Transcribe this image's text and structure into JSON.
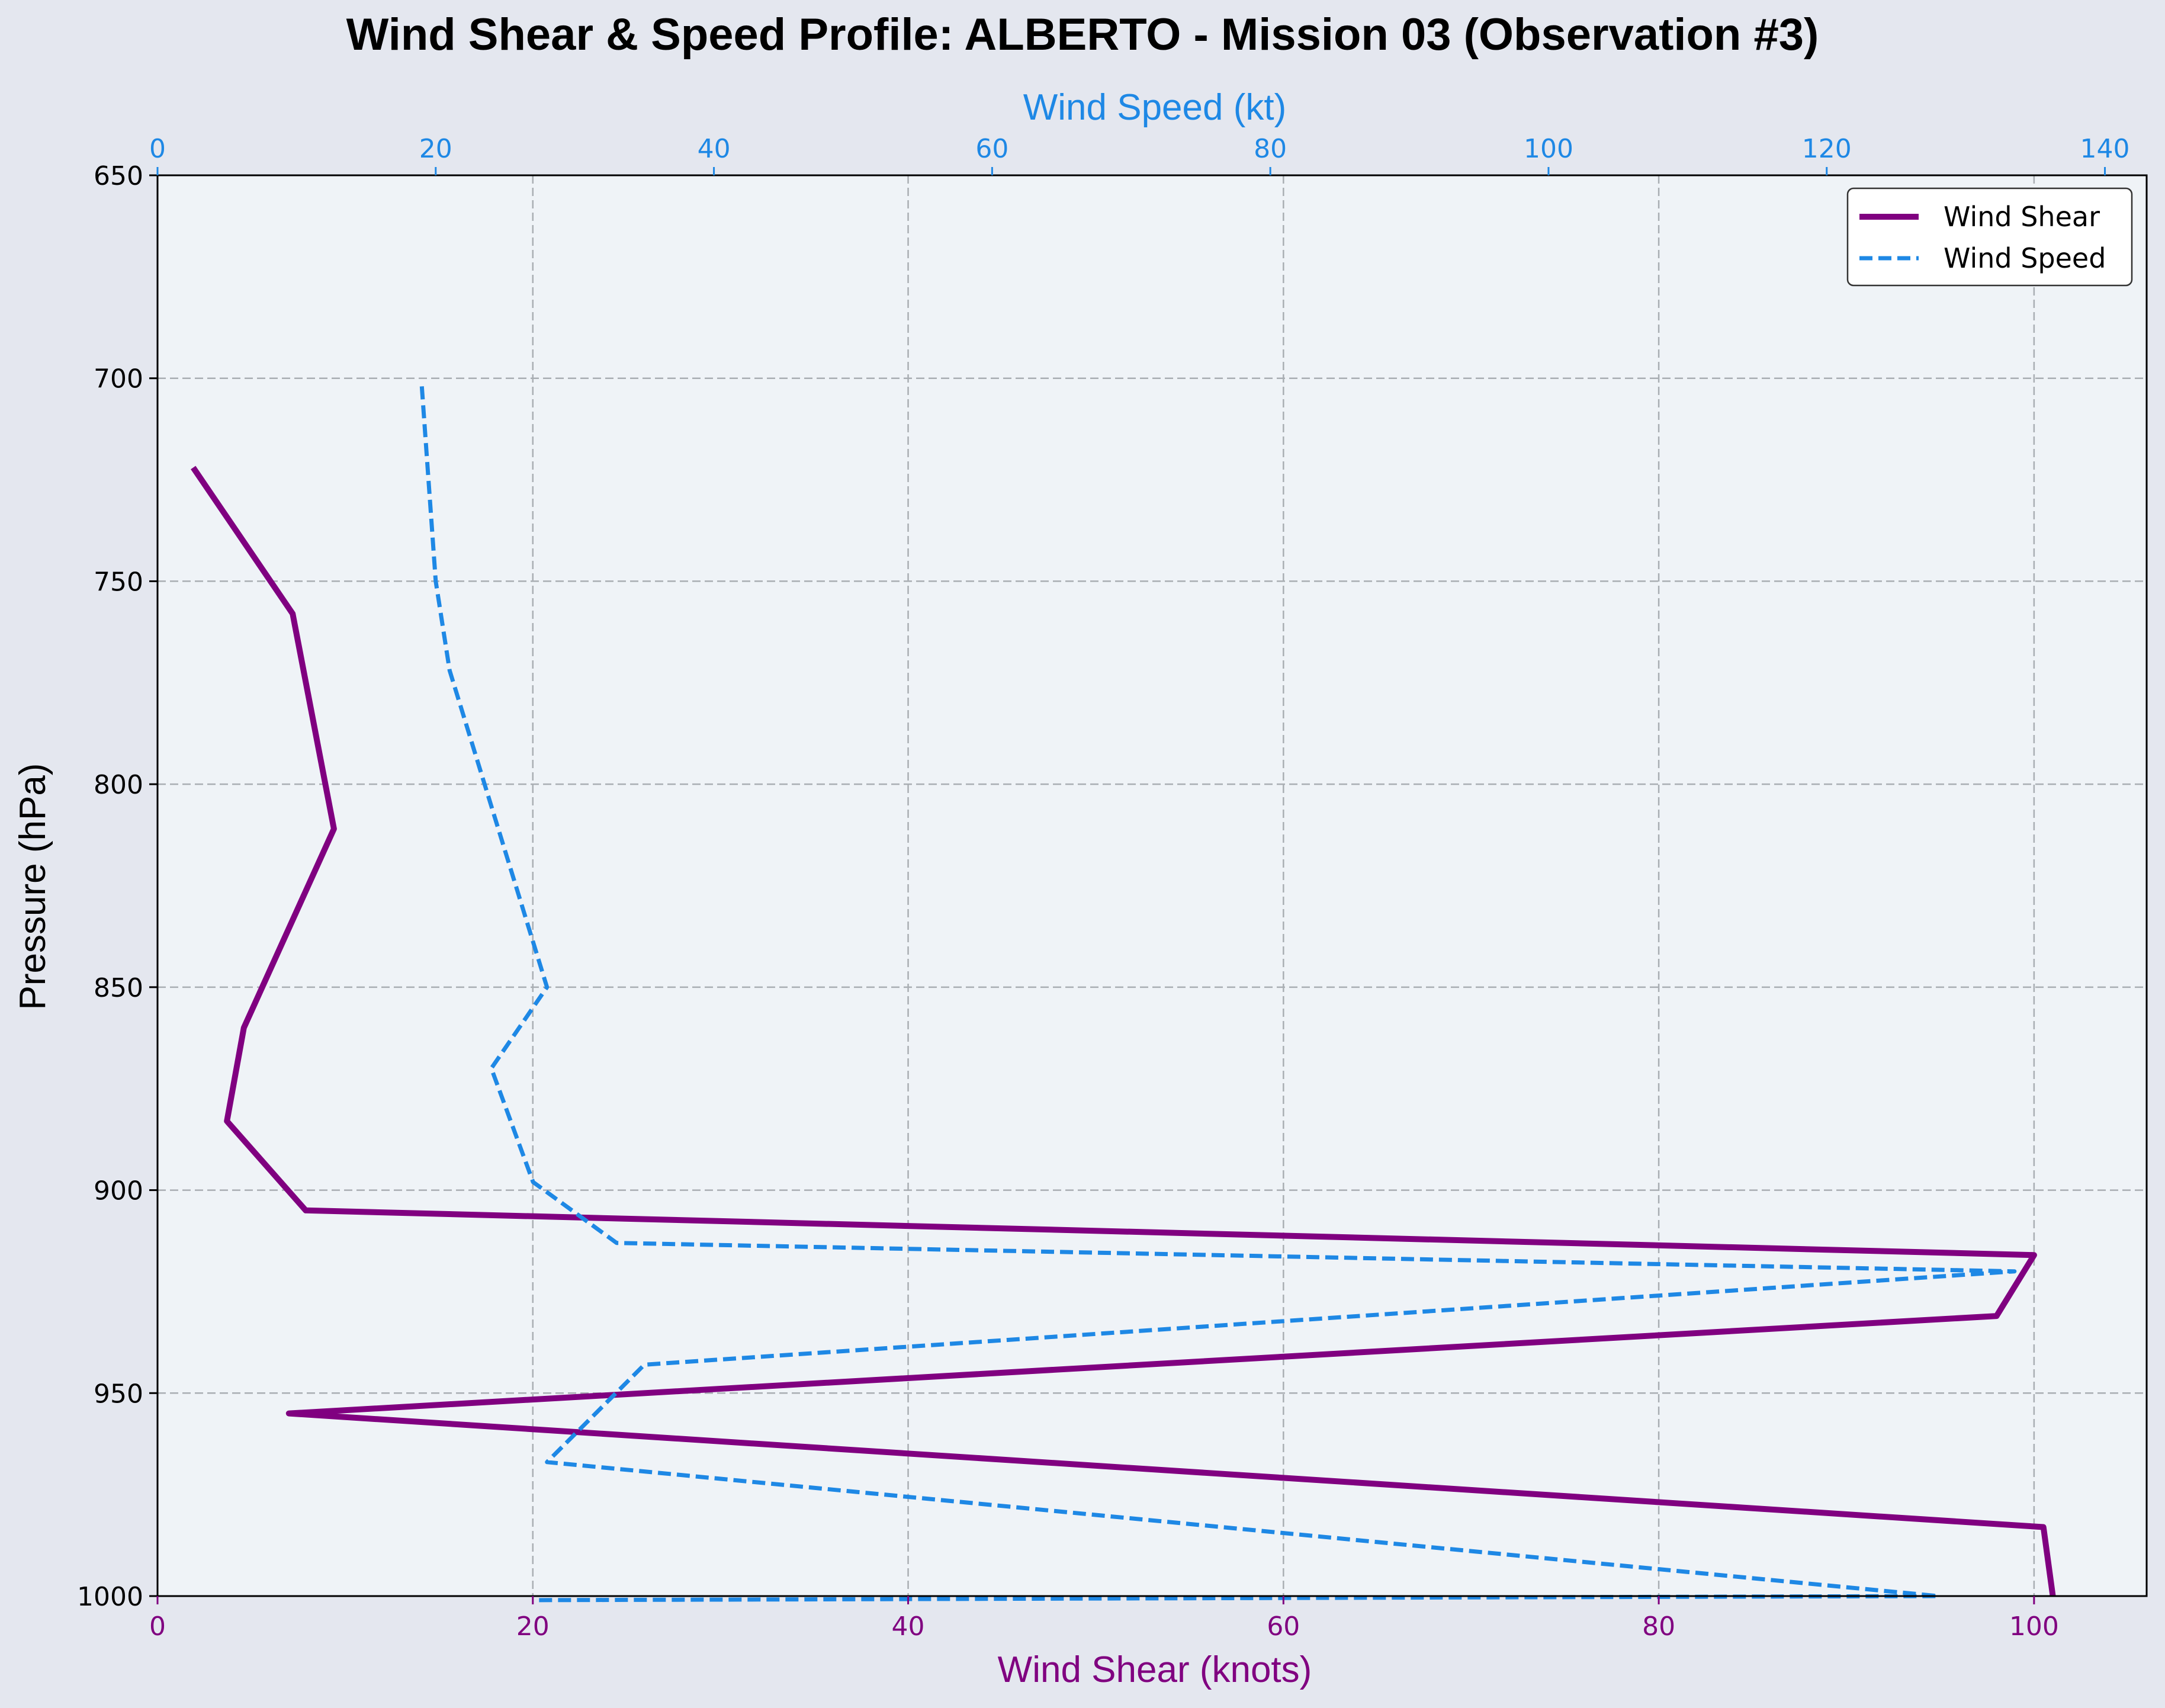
{
  "chart_data": {
    "type": "line",
    "title": "Wind Shear & Speed Profile: ALBERTO - Mission 03 (Observation #3)",
    "ylabel": "Pressure (hPa)",
    "xlabel_bottom": "Wind Shear (knots)",
    "xlabel_top": "Wind Speed (kt)",
    "y_inverted": true,
    "ylim": [
      1000,
      650
    ],
    "xlim_bottom": [
      0,
      106
    ],
    "xlim_top": [
      0,
      143
    ],
    "yticks": [
      "650",
      "700",
      "750",
      "800",
      "850",
      "900",
      "950",
      "1000"
    ],
    "xticks_bottom": [
      "0",
      "20",
      "40",
      "60",
      "80",
      "100"
    ],
    "xticks_top": [
      "0",
      "20",
      "40",
      "60",
      "80",
      "100",
      "120",
      "140"
    ],
    "grid": true,
    "legend_position": "top-right",
    "colors": {
      "shear": "#800080",
      "speed": "#1e88e5"
    },
    "series": [
      {
        "name": "Wind Shear",
        "axis": "bottom",
        "style": "solid",
        "points": [
          [
            1.9,
            722
          ],
          [
            7.2,
            758
          ],
          [
            9.4,
            811
          ],
          [
            4.6,
            860
          ],
          [
            3.7,
            883
          ],
          [
            7.9,
            905
          ],
          [
            100.0,
            916
          ],
          [
            98.0,
            931
          ],
          [
            7.0,
            955
          ],
          [
            100.5,
            983
          ],
          [
            101.0,
            1000
          ]
        ]
      },
      {
        "name": "Wind Speed",
        "axis": "top",
        "style": "dashed",
        "points": [
          [
            19.0,
            702
          ],
          [
            20.0,
            750
          ],
          [
            21.0,
            772
          ],
          [
            28.0,
            850
          ],
          [
            24.0,
            870
          ],
          [
            27.0,
            898
          ],
          [
            33.0,
            913
          ],
          [
            133.5,
            920
          ],
          [
            35.0,
            943
          ],
          [
            28.0,
            967
          ],
          [
            128.0,
            1000
          ],
          [
            27.0,
            1001
          ]
        ]
      }
    ]
  }
}
